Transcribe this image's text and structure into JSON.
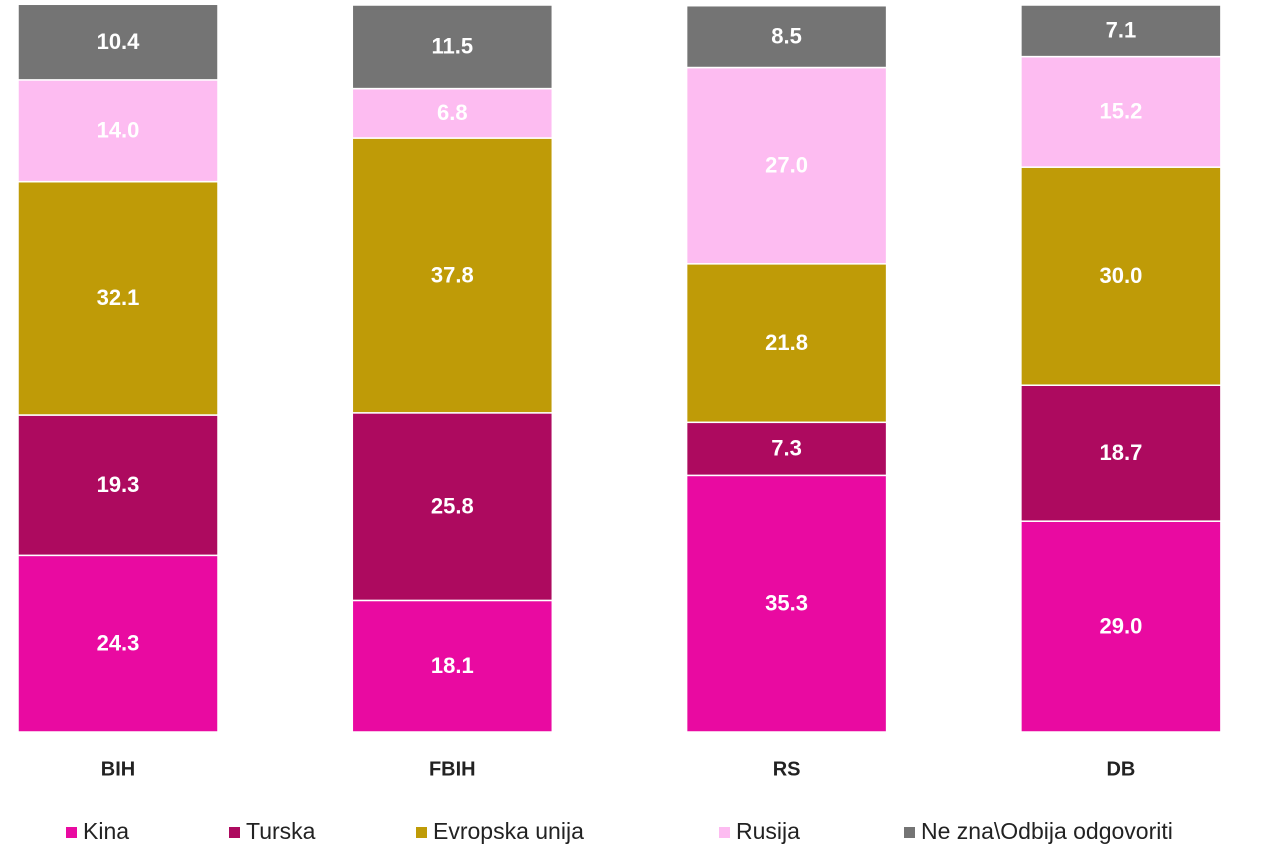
{
  "chart_data": {
    "type": "stacked_bar",
    "categories": [
      "BIH",
      "FBIH",
      "RS",
      "DB"
    ],
    "ylim": [
      0,
      100
    ],
    "series": [
      {
        "name": "Kina",
        "color": "#e90aa1",
        "values": [
          24.3,
          18.1,
          35.3,
          29.0
        ],
        "value_labels": [
          "24.3",
          "18.1",
          "35.3",
          "29.0"
        ]
      },
      {
        "name": "Turska",
        "color": "#ad0a5f",
        "values": [
          19.3,
          25.8,
          7.3,
          18.7
        ],
        "value_labels": [
          "19.3",
          "25.8",
          "7.3",
          "18.7"
        ]
      },
      {
        "name": "Evropska unija",
        "color": "#bf9b07",
        "values": [
          32.1,
          37.8,
          21.8,
          30.0
        ],
        "value_labels": [
          "32.1",
          "37.8",
          "21.8",
          "30.0"
        ]
      },
      {
        "name": "Rusija",
        "color": "#fdbcf1",
        "values": [
          14.0,
          6.8,
          27.0,
          15.2
        ],
        "value_labels": [
          "14.0",
          "6.8",
          "27.0",
          "15.2"
        ]
      },
      {
        "name": "Ne zna\\Odbija odgovoriti",
        "color": "#747474",
        "values": [
          10.4,
          11.5,
          8.5,
          7.1
        ],
        "value_labels": [
          "10.4",
          "11.5",
          "8.5",
          "7.1"
        ]
      }
    ],
    "legend": "bottom"
  }
}
